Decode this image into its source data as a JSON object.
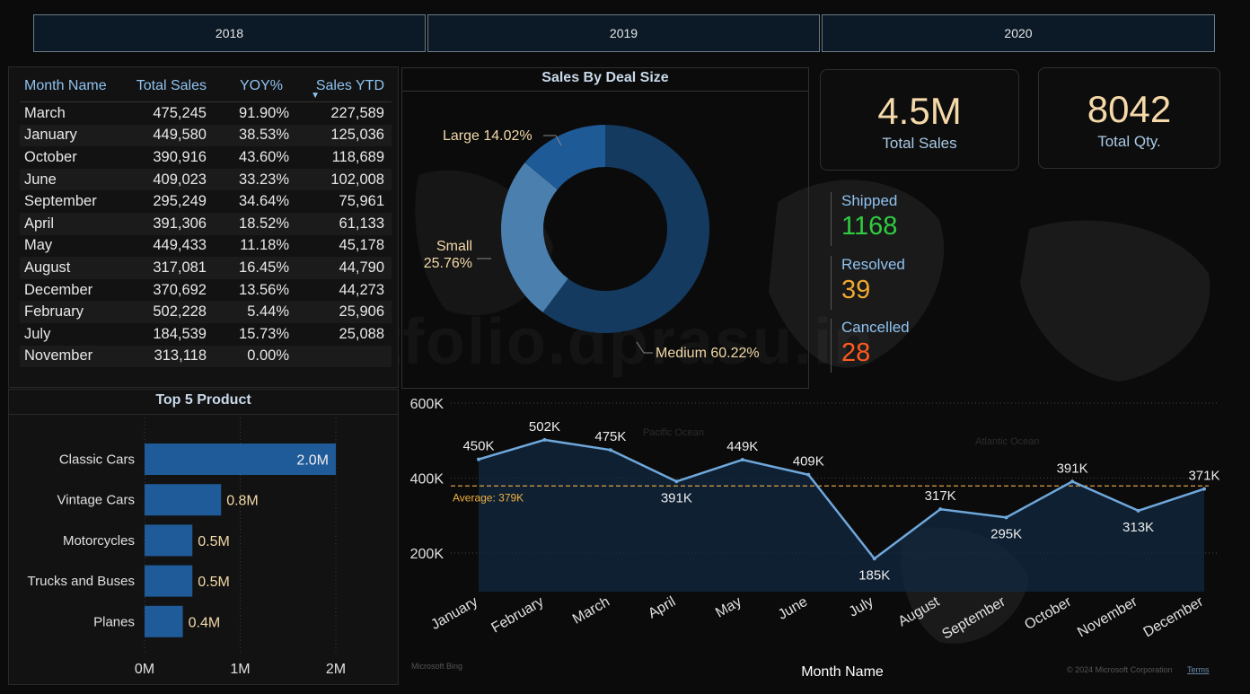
{
  "years": [
    "2018",
    "2019",
    "2020"
  ],
  "table": {
    "headers": [
      "Month Name",
      "Total Sales",
      "YOY%",
      "Sales YTD"
    ],
    "rows": [
      [
        "March",
        "475,245",
        "91.90%",
        "227,589"
      ],
      [
        "January",
        "449,580",
        "38.53%",
        "125,036"
      ],
      [
        "October",
        "390,916",
        "43.60%",
        "118,689"
      ],
      [
        "June",
        "409,023",
        "33.23%",
        "102,008"
      ],
      [
        "September",
        "295,249",
        "34.64%",
        "75,961"
      ],
      [
        "April",
        "391,306",
        "18.52%",
        "61,133"
      ],
      [
        "May",
        "449,433",
        "11.18%",
        "45,178"
      ],
      [
        "August",
        "317,081",
        "16.45%",
        "44,790"
      ],
      [
        "December",
        "370,692",
        "13.56%",
        "44,273"
      ],
      [
        "February",
        "502,228",
        "5.44%",
        "25,906"
      ],
      [
        "July",
        "184,539",
        "15.73%",
        "25,088"
      ],
      [
        "November",
        "313,118",
        "0.00%",
        ""
      ]
    ]
  },
  "donut": {
    "title": "Sales By Deal Size",
    "slices": [
      {
        "label": "Large",
        "value": 14.02,
        "text": "Large 14.02%",
        "color": "#1e5a96"
      },
      {
        "label": "Small",
        "value": 25.76,
        "text1": "Small",
        "text2": "25.76%",
        "color": "#4a7fae"
      },
      {
        "label": "Medium",
        "value": 60.22,
        "text": "Medium 60.22%",
        "color": "#143a60"
      }
    ]
  },
  "kpis": {
    "total_sales": {
      "value": "4.5M",
      "label": "Total Sales"
    },
    "total_qty": {
      "value": "8042",
      "label": "Total Qty."
    }
  },
  "statuses": [
    {
      "label": "Shipped",
      "value": "1168",
      "color": "#2ecc40"
    },
    {
      "label": "Resolved",
      "value": "39",
      "color": "#f0a830"
    },
    {
      "label": "Cancelled",
      "value": "28",
      "color": "#ff5a1f"
    }
  ],
  "top5": {
    "title": "Top 5 Product",
    "items": [
      {
        "name": "Classic Cars",
        "value": 2.0,
        "label": "2.0M"
      },
      {
        "name": "Vintage Cars",
        "value": 0.8,
        "label": "0.8M"
      },
      {
        "name": "Motorcycles",
        "value": 0.5,
        "label": "0.5M"
      },
      {
        "name": "Trucks and Buses",
        "value": 0.5,
        "label": "0.5M"
      },
      {
        "name": "Planes",
        "value": 0.4,
        "label": "0.4M"
      }
    ],
    "ticks": [
      "0M",
      "1M",
      "2M"
    ]
  },
  "chart_data": {
    "type": "line",
    "x": [
      "January",
      "February",
      "March",
      "April",
      "May",
      "June",
      "July",
      "August",
      "September",
      "October",
      "November",
      "December"
    ],
    "values": [
      450,
      502,
      475,
      391,
      449,
      409,
      185,
      317,
      295,
      391,
      313,
      371
    ],
    "labels": [
      "450K",
      "502K",
      "475K",
      "391K",
      "449K",
      "409K",
      "185K",
      "317K",
      "295K",
      "391K",
      "313K",
      "371K"
    ],
    "ylim": [
      100,
      600
    ],
    "yticks": [
      {
        "v": 200,
        "t": "200K"
      },
      {
        "v": 400,
        "t": "400K"
      },
      {
        "v": 600,
        "t": "600K"
      }
    ],
    "average": 379,
    "average_label": "Average: 379K",
    "xlabel": "Month Name",
    "ylabel": "",
    "grid": true
  },
  "map_labels": {
    "bing": "Microsoft Bing",
    "copyright": "© 2024 Microsoft Corporation",
    "terms": "Terms"
  }
}
